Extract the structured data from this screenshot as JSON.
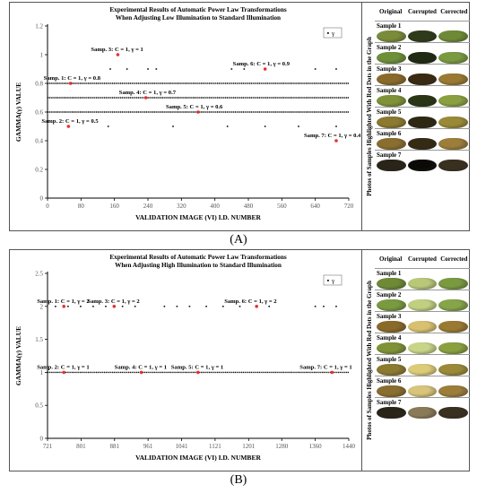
{
  "panels": [
    {
      "panel_label": "(A)",
      "side_title": "Photos of Samples Highlighted With Red Dots in the Graph",
      "columns": [
        "Original",
        "Corrupted",
        "Corrected"
      ],
      "samples": [
        {
          "label": "Sample 1",
          "colors": [
            "#7a8c3a",
            "#2f3a1a",
            "#6f8a36"
          ]
        },
        {
          "label": "Sample 2",
          "colors": [
            "#6d8f3a",
            "#1f2a12",
            "#7a9a40"
          ]
        },
        {
          "label": "Sample 3",
          "colors": [
            "#8a6a2a",
            "#3a2a12",
            "#9a7a32"
          ]
        },
        {
          "label": "Sample 4",
          "colors": [
            "#7f9238",
            "#2a3515",
            "#8aa040"
          ]
        },
        {
          "label": "Sample 5",
          "colors": [
            "#8c7a30",
            "#2e2812",
            "#9a8a38"
          ]
        },
        {
          "label": "Sample 6",
          "colors": [
            "#8a6e30",
            "#352a14",
            "#9c7e3a"
          ]
        },
        {
          "label": "Sample 7",
          "colors": [
            "#2a2418",
            "#0c0a06",
            "#3a3020"
          ]
        }
      ]
    },
    {
      "panel_label": "(B)",
      "side_title": "Photos of Samples Highlighted With Red Dots in the Graph",
      "columns": [
        "Original",
        "Corrupted",
        "Corrected"
      ],
      "samples": [
        {
          "label": "Sample 1",
          "colors": [
            "#6f8a36",
            "#b8c878",
            "#7a9a40"
          ]
        },
        {
          "label": "Sample 2",
          "colors": [
            "#7a9a40",
            "#c0d080",
            "#86a448"
          ]
        },
        {
          "label": "Sample 3",
          "colors": [
            "#8a6a2a",
            "#d8c070",
            "#9a7a32"
          ]
        },
        {
          "label": "Sample 4",
          "colors": [
            "#7f9238",
            "#c8d488",
            "#8aa040"
          ]
        },
        {
          "label": "Sample 5",
          "colors": [
            "#8c7a30",
            "#dccc78",
            "#9a8a38"
          ]
        },
        {
          "label": "Sample 6",
          "colors": [
            "#8a6e30",
            "#d8c47a",
            "#9c7e3a"
          ]
        },
        {
          "label": "Sample 7",
          "colors": [
            "#2a2418",
            "#8a7a58",
            "#3a3020"
          ]
        }
      ]
    }
  ],
  "chart_data": [
    {
      "type": "scatter",
      "title": "Experimental Results of  Automatic Power Law  Transformations",
      "subtitle": "When Adjusting Low Illumination to Standard Illumination",
      "xlabel": "VALIDATION IMAGE (VI) I.D. NUMBER",
      "ylabel": "GAMMA(γ) VALUE",
      "xlim": [
        0,
        720
      ],
      "ylim": [
        0,
        1.2
      ],
      "xticks": [
        0,
        80,
        160,
        240,
        320,
        400,
        480,
        560,
        640,
        720
      ],
      "yticks": [
        0,
        0.2,
        0.4,
        0.6,
        0.8,
        1,
        1.2
      ],
      "ytick_labels": [
        "0",
        "0.2",
        "0.4",
        "0.6",
        "0.8",
        "1",
        "1.2"
      ],
      "legend": {
        "label": "γ",
        "position": "top-right"
      },
      "grid": false,
      "dense_rows": [
        {
          "y": 0.7,
          "from": 0,
          "to": 720
        },
        {
          "y": 0.8,
          "from": 0,
          "to": 720
        },
        {
          "y": 0.6,
          "from": 0,
          "to": 720
        }
      ],
      "sparse_points": [
        {
          "x": 150,
          "y": 0.9
        },
        {
          "x": 190,
          "y": 0.9
        },
        {
          "x": 240,
          "y": 0.9
        },
        {
          "x": 260,
          "y": 0.9
        },
        {
          "x": 440,
          "y": 0.9
        },
        {
          "x": 470,
          "y": 0.9
        },
        {
          "x": 640,
          "y": 0.9
        },
        {
          "x": 690,
          "y": 0.9
        },
        {
          "x": 145,
          "y": 0.5
        },
        {
          "x": 300,
          "y": 0.5
        },
        {
          "x": 430,
          "y": 0.5
        },
        {
          "x": 520,
          "y": 0.5
        },
        {
          "x": 600,
          "y": 0.5
        },
        {
          "x": 690,
          "y": 0.5
        }
      ],
      "highlights": [
        {
          "x": 55,
          "y": 0.8,
          "label": "Samp. 1: C = 1, γ = 0.8"
        },
        {
          "x": 50,
          "y": 0.5,
          "label": "Samp. 2: C = 1, γ = 0.5"
        },
        {
          "x": 168,
          "y": 1.0,
          "label": "Samp. 3: C = 1, γ = 1"
        },
        {
          "x": 235,
          "y": 0.7,
          "label": "Samp. 4: C = 1, γ = 0.7"
        },
        {
          "x": 360,
          "y": 0.6,
          "label": "Samp. 5: C = 1, γ = 0.6"
        },
        {
          "x": 520,
          "y": 0.9,
          "label": "Samp. 6: C = 1, γ = 0.9"
        },
        {
          "x": 690,
          "y": 0.4,
          "label": "Samp. 7: C = 1, γ = 0.4"
        }
      ]
    },
    {
      "type": "scatter",
      "title": "Experimental Results of Automatic Power Law Transformations",
      "subtitle": "When Adjusting High Illumination to Standard Illumination",
      "xlabel": "VALIDATION IMAGE (VI) I.D. NUMBER",
      "ylabel": "GAMMA(γ) VALUE",
      "xlim": [
        721,
        1440
      ],
      "ylim": [
        0,
        2.5
      ],
      "xticks": [
        721,
        801,
        881,
        961,
        1041,
        1121,
        1201,
        1280,
        1360,
        1440
      ],
      "yticks": [
        0,
        0.5,
        1,
        1.5,
        2,
        2.5
      ],
      "ytick_labels": [
        "0",
        "0.5",
        "1",
        "1.5",
        "2",
        "2.5"
      ],
      "legend": {
        "label": "γ",
        "position": "top-right"
      },
      "grid": false,
      "dense_rows": [
        {
          "y": 1.0,
          "from": 721,
          "to": 1440
        }
      ],
      "sparse_points": [
        {
          "x": 740,
          "y": 2
        },
        {
          "x": 770,
          "y": 2
        },
        {
          "x": 800,
          "y": 2
        },
        {
          "x": 830,
          "y": 2
        },
        {
          "x": 860,
          "y": 2
        },
        {
          "x": 900,
          "y": 2
        },
        {
          "x": 930,
          "y": 2
        },
        {
          "x": 1000,
          "y": 2
        },
        {
          "x": 1030,
          "y": 2
        },
        {
          "x": 1060,
          "y": 2
        },
        {
          "x": 1100,
          "y": 2
        },
        {
          "x": 1140,
          "y": 2
        },
        {
          "x": 1180,
          "y": 2
        },
        {
          "x": 1250,
          "y": 2
        },
        {
          "x": 1360,
          "y": 2
        },
        {
          "x": 1380,
          "y": 2
        },
        {
          "x": 1410,
          "y": 2
        }
      ],
      "highlights": [
        {
          "x": 760,
          "y": 2,
          "label": "Samp. 1: C = 1, γ = 2"
        },
        {
          "x": 760,
          "y": 1,
          "label": "Samp. 2: C = 1, γ = 1"
        },
        {
          "x": 880,
          "y": 2,
          "label": "Samp. 3: C = 1, γ = 2"
        },
        {
          "x": 945,
          "y": 1,
          "label": "Samp. 4: C = 1, γ = 1"
        },
        {
          "x": 1080,
          "y": 1,
          "label": "Samp. 5: C = 1, γ = 1"
        },
        {
          "x": 1220,
          "y": 2,
          "label": "Samp. 6: C = 1, γ = 2"
        },
        {
          "x": 1400,
          "y": 1,
          "label": "Samp. 7: C = 1, γ = 1"
        }
      ]
    }
  ]
}
